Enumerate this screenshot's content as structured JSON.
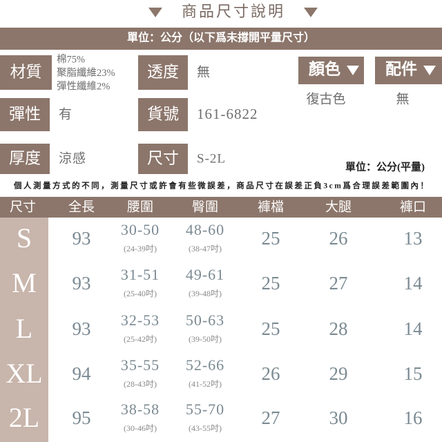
{
  "header": {
    "title": "商品尺寸說明",
    "unit_note": "單位：公分（以下爲未撐開平量尺寸）"
  },
  "specs": [
    {
      "label": "材質",
      "value": [
        "棉75%",
        "聚脂纖維23%",
        "彈性纖維2%"
      ]
    },
    {
      "label": "透度",
      "value": "無"
    },
    {
      "label": "彈性",
      "value": "有"
    },
    {
      "label": "貨號",
      "value": "161-6822"
    },
    {
      "label": "厚度",
      "value": "涼感"
    },
    {
      "label": "尺寸",
      "value": "S-2L"
    }
  ],
  "options": [
    {
      "label": "顏色",
      "value": "復古色"
    },
    {
      "label": "配件",
      "value": "無"
    }
  ],
  "unit": "單位：公分(平量)",
  "note": "個人測量方式的不同，測量尺寸或許會有些微誤差，商品尺寸在誤差正負3cm爲合理誤差範圍內！",
  "table": {
    "columns": [
      "尺寸",
      "全長",
      "腰圍",
      "臀圍",
      "褲檔",
      "大腿",
      "褲口"
    ],
    "rows": [
      {
        "size": "S",
        "length": "93",
        "waist": "30-50",
        "waist_inch": "(24-39吋)",
        "hip": "48-60",
        "hip_inch": "(38-47吋)",
        "rise": "25",
        "thigh": "26",
        "hem": "13"
      },
      {
        "size": "M",
        "length": "93",
        "waist": "31-51",
        "waist_inch": "(25-40吋)",
        "hip": "49-61",
        "hip_inch": "(39-48吋)",
        "rise": "25",
        "thigh": "27",
        "hem": "14"
      },
      {
        "size": "L",
        "length": "93",
        "waist": "32-53",
        "waist_inch": "(25-42吋)",
        "hip": "50-63",
        "hip_inch": "(39-50吋)",
        "rise": "25",
        "thigh": "28",
        "hem": "14"
      },
      {
        "size": "XL",
        "length": "94",
        "waist": "35-55",
        "waist_inch": "(28-43吋)",
        "hip": "52-66",
        "hip_inch": "(41-52吋)",
        "rise": "26",
        "thigh": "29",
        "hem": "15"
      },
      {
        "size": "2L",
        "length": "95",
        "waist": "38-58",
        "waist_inch": "(30-46吋)",
        "hip": "55-70",
        "hip_inch": "(43-55吋)",
        "rise": "27",
        "thigh": "30",
        "hem": "16"
      }
    ]
  }
}
